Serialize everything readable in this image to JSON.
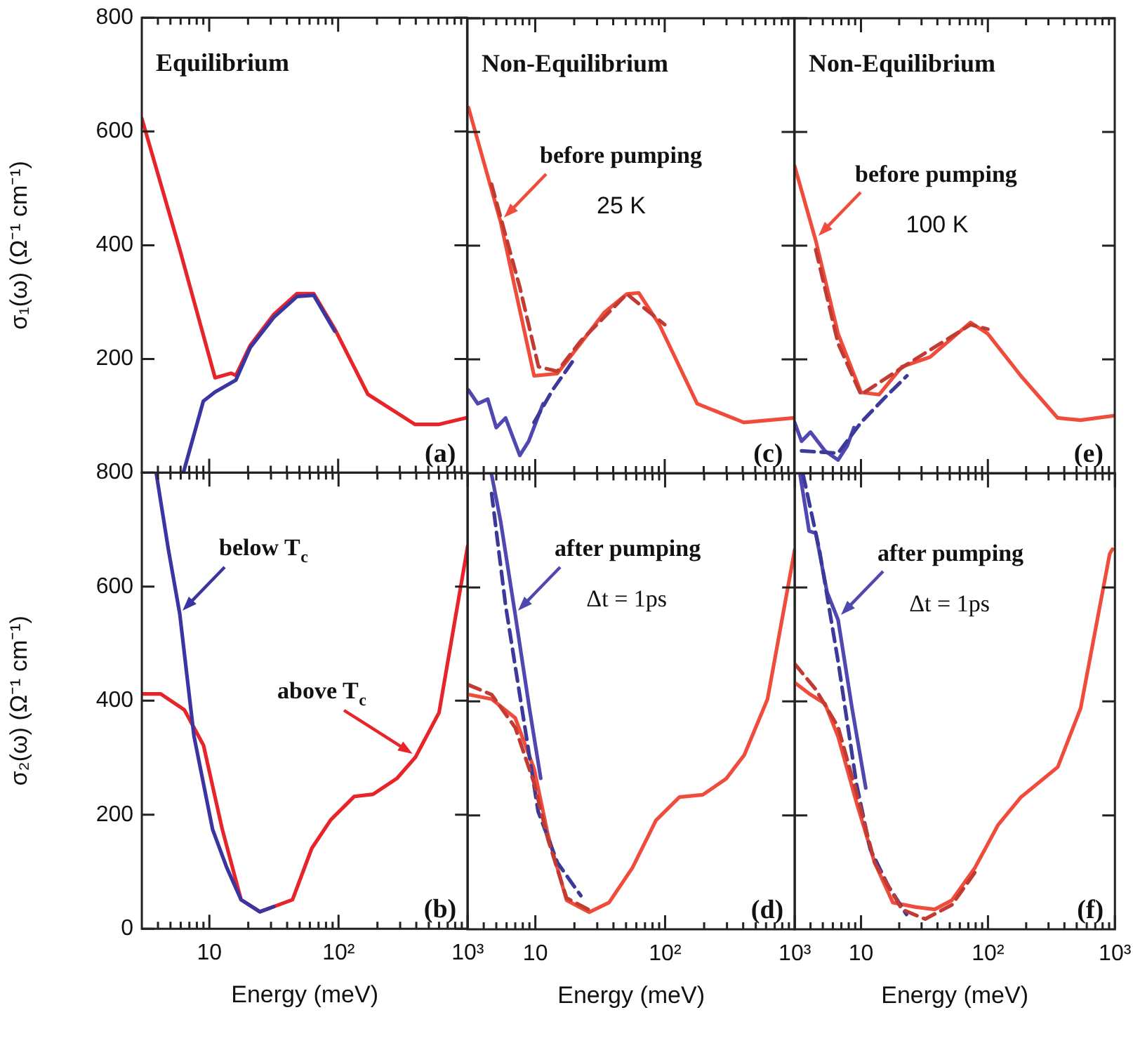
{
  "chart_data": [
    {
      "type": "line",
      "title": "Equilibrium",
      "ylabel": "σ₁(ω) (Ω⁻¹ cm⁻¹)",
      "tick_labels": "y",
      "xlim": [
        3,
        1000
      ],
      "ylim": [
        0,
        800
      ],
      "xticks": [
        {
          "value": 4,
          "label": null
        },
        {
          "value": 5,
          "label": null
        },
        {
          "value": 6,
          "label": null
        },
        {
          "value": 7,
          "label": null
        },
        {
          "value": 8,
          "label": null
        },
        {
          "value": 9,
          "label": null
        },
        {
          "value": 10,
          "label": null
        },
        {
          "value": 20,
          "label": null
        },
        {
          "value": 30,
          "label": null
        },
        {
          "value": 40,
          "label": null
        },
        {
          "value": 50,
          "label": null
        },
        {
          "value": 60,
          "label": null
        },
        {
          "value": 70,
          "label": null
        },
        {
          "value": 80,
          "label": null
        },
        {
          "value": 90,
          "label": null
        },
        {
          "value": 100,
          "label": null
        },
        {
          "value": 200,
          "label": null
        },
        {
          "value": 300,
          "label": null
        },
        {
          "value": 400,
          "label": null
        },
        {
          "value": 500,
          "label": null
        },
        {
          "value": 600,
          "label": null
        },
        {
          "value": 700,
          "label": null
        },
        {
          "value": 800,
          "label": null
        },
        {
          "value": 900,
          "label": null
        }
      ],
      "yticks": [
        200,
        400,
        600,
        800
      ],
      "log": "x",
      "annotations": [
        "(a)"
      ],
      "series": [
        {
          "color": "#3a35a0",
          "x": [
            6.3,
            9.0,
            11.1,
            16.1,
            20.8,
            31.6,
            48,
            64.6,
            94
          ],
          "values": [
            0,
            126,
            142,
            163,
            220,
            273,
            310,
            312,
            249
          ]
        },
        {
          "color": "#e8242b",
          "x": [
            3.0,
            5.9,
            11.1,
            14.8,
            16.1,
            20.8,
            31.6,
            48,
            64.6,
            94,
            170,
            394,
            600,
            1000
          ],
          "values": [
            623,
            393,
            167,
            175,
            171,
            224,
            278,
            315,
            315,
            253,
            138,
            85,
            85,
            97
          ]
        }
      ]
    },
    {
      "type": "line",
      "title": "Non-Equilibrium",
      "tick_labels": false,
      "xlim": [
        3,
        1000
      ],
      "ylim": [
        0,
        800
      ],
      "xticks": [
        {
          "value": 4,
          "label": null
        },
        {
          "value": 5,
          "label": null
        },
        {
          "value": 6,
          "label": null
        },
        {
          "value": 7,
          "label": null
        },
        {
          "value": 8,
          "label": null
        },
        {
          "value": 9,
          "label": null
        },
        {
          "value": 10,
          "label": null
        },
        {
          "value": 20,
          "label": null
        },
        {
          "value": 30,
          "label": null
        },
        {
          "value": 40,
          "label": null
        },
        {
          "value": 50,
          "label": null
        },
        {
          "value": 60,
          "label": null
        },
        {
          "value": 70,
          "label": null
        },
        {
          "value": 80,
          "label": null
        },
        {
          "value": 90,
          "label": null
        },
        {
          "value": 100,
          "label": null
        },
        {
          "value": 200,
          "label": null
        },
        {
          "value": 300,
          "label": null
        },
        {
          "value": 400,
          "label": null
        },
        {
          "value": 500,
          "label": null
        },
        {
          "value": 600,
          "label": null
        },
        {
          "value": 700,
          "label": null
        },
        {
          "value": 800,
          "label": null
        },
        {
          "value": 900,
          "label": null
        }
      ],
      "yticks": [
        {
          "value": 200,
          "label": null
        },
        {
          "value": 400,
          "label": null
        },
        {
          "value": 600,
          "label": null
        },
        {
          "value": 800,
          "label": null
        }
      ],
      "log": "x",
      "annotations": [
        "(c)",
        {
          "text": "before pumping",
          "x": 5.4,
          "y": 442
        },
        "25 K"
      ],
      "series": [
        {
          "color": "#c23b32",
          "line_style": "dashed",
          "x": [
            4.6,
            7.6,
            10.6,
            14.8,
            22.4,
            51,
            100
          ],
          "values": [
            508,
            327,
            187,
            179,
            232,
            315,
            261
          ]
        },
        {
          "color": "#3b3a9a",
          "line_style": "dashed",
          "x": [
            9.8,
            13.6,
            20.5
          ],
          "values": [
            89,
            146,
            204
          ]
        },
        {
          "color": "#5048b0",
          "x": [
            3.05,
            3.6,
            4.3,
            5.0,
            5.9,
            7.6,
            8.9,
            11.5
          ],
          "values": [
            146,
            122,
            130,
            80,
            97,
            31,
            56,
            122
          ]
        },
        {
          "color": "#ef4c3c",
          "x": [
            3.05,
            5.4,
            9.8,
            14.8,
            22.4,
            34,
            51,
            63,
            91,
            178,
            408,
            1000
          ],
          "values": [
            643,
            442,
            171,
            175,
            228,
            282,
            315,
            317,
            261,
            122,
            89,
            97
          ]
        }
      ]
    },
    {
      "type": "line",
      "title": "Non-Equilibrium",
      "tick_labels": false,
      "xlim": [
        3,
        1000
      ],
      "ylim": [
        0,
        800
      ],
      "xticks": [
        {
          "value": 4,
          "label": null
        },
        {
          "value": 5,
          "label": null
        },
        {
          "value": 6,
          "label": null
        },
        {
          "value": 7,
          "label": null
        },
        {
          "value": 8,
          "label": null
        },
        {
          "value": 9,
          "label": null
        },
        {
          "value": 10,
          "label": null
        },
        {
          "value": 20,
          "label": null
        },
        {
          "value": 30,
          "label": null
        },
        {
          "value": 40,
          "label": null
        },
        {
          "value": 50,
          "label": null
        },
        {
          "value": 60,
          "label": null
        },
        {
          "value": 70,
          "label": null
        },
        {
          "value": 80,
          "label": null
        },
        {
          "value": 90,
          "label": null
        },
        {
          "value": 100,
          "label": null
        },
        {
          "value": 200,
          "label": null
        },
        {
          "value": 300,
          "label": null
        },
        {
          "value": 400,
          "label": null
        },
        {
          "value": 500,
          "label": null
        },
        {
          "value": 600,
          "label": null
        },
        {
          "value": 700,
          "label": null
        },
        {
          "value": 800,
          "label": null
        },
        {
          "value": 900,
          "label": null
        }
      ],
      "yticks": [
        {
          "value": 200,
          "label": null
        },
        {
          "value": 400,
          "label": null
        },
        {
          "value": 600,
          "label": null
        },
        {
          "value": 800,
          "label": null
        }
      ],
      "log": "x",
      "annotations": [
        "(e)",
        {
          "text": "before pumping",
          "x": 4.4,
          "y": 409
        },
        "100 K"
      ],
      "series": [
        {
          "color": "#c23b32",
          "line_style": "dashed",
          "x": [
            4.4,
            6.6,
            10,
            23,
            73,
            100
          ],
          "values": [
            393,
            228,
            138,
            191,
            261,
            253
          ]
        },
        {
          "color": "#3b3a9a",
          "line_style": "dashed",
          "x": [
            3.4,
            6.6,
            10,
            15,
            23
          ],
          "values": [
            39,
            35,
            89,
            130,
            171
          ]
        },
        {
          "color": "#5048b0",
          "x": [
            3.0,
            3.4,
            4.0,
            5.2,
            6.6,
            7.8,
            8.8
          ],
          "values": [
            89,
            56,
            72,
            39,
            23,
            48,
            80
          ]
        },
        {
          "color": "#ef4c3c",
          "x": [
            3.0,
            4.4,
            6.6,
            10,
            13.9,
            21,
            35,
            73,
            100,
            182,
            355,
            537,
            1000
          ],
          "values": [
            540,
            409,
            245,
            142,
            138,
            187,
            204,
            265,
            245,
            171,
            97,
            93,
            101
          ]
        }
      ]
    },
    {
      "type": "line",
      "xlabel": "Energy (meV)",
      "ylabel": "σ₂(ω) (Ω⁻¹ cm⁻¹)",
      "xlim": [
        3,
        1000
      ],
      "ylim": [
        0,
        800
      ],
      "xticks": [
        {
          "value": 4,
          "label": null
        },
        {
          "value": 5,
          "label": null
        },
        {
          "value": 6,
          "label": null
        },
        {
          "value": 7,
          "label": null
        },
        {
          "value": 8,
          "label": null
        },
        {
          "value": 9,
          "label": null
        },
        {
          "value": 10,
          "label": "10"
        },
        {
          "value": 20,
          "label": null
        },
        {
          "value": 30,
          "label": null
        },
        {
          "value": 40,
          "label": null
        },
        {
          "value": 50,
          "label": null
        },
        {
          "value": 60,
          "label": null
        },
        {
          "value": 70,
          "label": null
        },
        {
          "value": 80,
          "label": null
        },
        {
          "value": 90,
          "label": null
        },
        {
          "value": 100,
          "label": "10²"
        },
        {
          "value": 200,
          "label": null
        },
        {
          "value": 300,
          "label": null
        },
        {
          "value": 400,
          "label": null
        },
        {
          "value": 500,
          "label": null
        },
        {
          "value": 600,
          "label": null
        },
        {
          "value": 700,
          "label": null
        },
        {
          "value": 800,
          "label": null
        },
        {
          "value": 900,
          "label": null
        },
        {
          "value": 1000,
          "label": "10³"
        }
      ],
      "yticks": [
        0,
        200,
        400,
        600,
        800
      ],
      "log": "x",
      "annotations": [
        "(b)",
        {
          "text": "below T$_{c}$",
          "x": 5.9,
          "y": 552
        },
        {
          "text": "above T$_{c}$",
          "x": 394,
          "y": 301
        }
      ],
      "series": [
        {
          "color": "#3a35a0",
          "x": [
            3.87,
            4.8,
            5.9,
            7.6,
            10.6,
            13.6,
            17.6,
            24.6,
            31.6
          ],
          "values": [
            800,
            667,
            552,
            338,
            174,
            108,
            51,
            30,
            39
          ]
        },
        {
          "color": "#e8242b",
          "x": [
            3.0,
            4.2,
            6.4,
            9.0,
            12.6,
            17.6,
            24.6,
            31.6,
            44,
            62,
            87,
            132,
            185,
            284,
            394,
            600,
            1000
          ],
          "values": [
            412,
            412,
            384,
            322,
            174,
            51,
            30,
            39,
            51,
            141,
            191,
            232,
            236,
            264,
            301,
            379,
            671
          ]
        }
      ]
    },
    {
      "type": "line",
      "xlabel": "Energy (meV)",
      "tick_labels": "x",
      "xlim": [
        3,
        1000
      ],
      "ylim": [
        0,
        800
      ],
      "xticks": [
        {
          "value": 4,
          "label": null
        },
        {
          "value": 5,
          "label": null
        },
        {
          "value": 6,
          "label": null
        },
        {
          "value": 7,
          "label": null
        },
        {
          "value": 8,
          "label": null
        },
        {
          "value": 9,
          "label": null
        },
        {
          "value": 10,
          "label": "10"
        },
        {
          "value": 20,
          "label": null
        },
        {
          "value": 30,
          "label": null
        },
        {
          "value": 40,
          "label": null
        },
        {
          "value": 50,
          "label": null
        },
        {
          "value": 60,
          "label": null
        },
        {
          "value": 70,
          "label": null
        },
        {
          "value": 80,
          "label": null
        },
        {
          "value": 90,
          "label": null
        },
        {
          "value": 100,
          "label": "10²"
        },
        {
          "value": 200,
          "label": null
        },
        {
          "value": 300,
          "label": null
        },
        {
          "value": 400,
          "label": null
        },
        {
          "value": 500,
          "label": null
        },
        {
          "value": 600,
          "label": null
        },
        {
          "value": 700,
          "label": null
        },
        {
          "value": 800,
          "label": null
        },
        {
          "value": 900,
          "label": null
        },
        {
          "value": 1000,
          "label": "10³"
        }
      ],
      "yticks": [
        {
          "value": 200,
          "label": null
        },
        {
          "value": 400,
          "label": null
        },
        {
          "value": 600,
          "label": null
        }
      ],
      "log": "x",
      "annotations": [
        "(d)",
        {
          "text": "after pumping",
          "x": 7.0,
          "y": 552
        },
        "Δt = 1ps"
      ],
      "series": [
        {
          "color": "#c23b32",
          "line_style": "dashed",
          "x": [
            3.05,
            4.6,
            7.0,
            9.8,
            12.5,
            17.4,
            26
          ],
          "values": [
            429,
            412,
            354,
            256,
            158,
            55,
            34
          ]
        },
        {
          "color": "#3b3a9a",
          "line_style": "dashed",
          "x": [
            4.6,
            5.9,
            8.3,
            10.5,
            14.8,
            22.4
          ],
          "values": [
            765,
            568,
            355,
            207,
            117,
            59
          ]
        },
        {
          "color": "#5048b0",
          "x": [
            4.6,
            5.4,
            7.0,
            9.0,
            11.0
          ],
          "values": [
            798,
            716,
            552,
            388,
            265
          ]
        },
        {
          "color": "#ef4c3c",
          "x": [
            3.05,
            4.6,
            7.0,
            9.8,
            12.5,
            17.4,
            26,
            37,
            56,
            85,
            129,
            195,
            295,
            408,
            616,
            1000
          ],
          "values": [
            412,
            404,
            371,
            281,
            166,
            51,
            30,
            47,
            108,
            191,
            232,
            236,
            264,
            306,
            404,
            667
          ]
        }
      ]
    },
    {
      "type": "line",
      "xlabel": "Energy (meV)",
      "tick_labels": "x",
      "xlim": [
        3,
        1000
      ],
      "ylim": [
        0,
        800
      ],
      "xticks": [
        {
          "value": 4,
          "label": null
        },
        {
          "value": 5,
          "label": null
        },
        {
          "value": 6,
          "label": null
        },
        {
          "value": 7,
          "label": null
        },
        {
          "value": 8,
          "label": null
        },
        {
          "value": 9,
          "label": null
        },
        {
          "value": 10,
          "label": "10"
        },
        {
          "value": 20,
          "label": null
        },
        {
          "value": 30,
          "label": null
        },
        {
          "value": 40,
          "label": null
        },
        {
          "value": 50,
          "label": null
        },
        {
          "value": 60,
          "label": null
        },
        {
          "value": 70,
          "label": null
        },
        {
          "value": 80,
          "label": null
        },
        {
          "value": 90,
          "label": null
        },
        {
          "value": 100,
          "label": "10²"
        },
        {
          "value": 200,
          "label": null
        },
        {
          "value": 300,
          "label": null
        },
        {
          "value": 400,
          "label": null
        },
        {
          "value": 500,
          "label": null
        },
        {
          "value": 600,
          "label": null
        },
        {
          "value": 700,
          "label": null
        },
        {
          "value": 800,
          "label": null
        },
        {
          "value": 900,
          "label": null
        },
        {
          "value": 1000,
          "label": "10³"
        }
      ],
      "yticks": [
        {
          "value": 200,
          "label": null
        },
        {
          "value": 400,
          "label": null
        },
        {
          "value": 600,
          "label": null
        }
      ],
      "log": "x",
      "annotations": [
        "(f)",
        {
          "text": "after pumping",
          "x": 6.6,
          "y": 543
        },
        "Δt = 1ps"
      ],
      "series": [
        {
          "color": "#c23b32",
          "line_style": "dashed",
          "x": [
            3.0,
            4.4,
            6.6,
            9.2,
            12.8,
            21,
            32,
            52,
            79
          ],
          "values": [
            466,
            421,
            355,
            240,
            117,
            35,
            18,
            43,
            100
          ]
        },
        {
          "color": "#3b3a9a",
          "line_style": "dashed",
          "x": [
            3.5,
            4.7,
            6.6,
            9.2,
            11.8,
            16.4,
            22.8
          ],
          "values": [
            798,
            666,
            470,
            256,
            141,
            76,
            26
          ]
        },
        {
          "color": "#5048b0",
          "x": [
            3.3,
            3.9,
            4.4,
            5.4,
            6.6,
            8.5,
            10.9
          ],
          "values": [
            800,
            699,
            695,
            592,
            543,
            388,
            248
          ]
        },
        {
          "color": "#ef4c3c",
          "x": [
            3.0,
            4.0,
            5.2,
            6.6,
            9.2,
            12.8,
            17.8,
            27,
            38,
            52,
            79,
            120,
            182,
            355,
            537,
            910,
            955
          ],
          "values": [
            433,
            412,
            396,
            338,
            223,
            117,
            47,
            39,
            35,
            51,
            108,
            183,
            232,
            285,
            388,
            659,
            667
          ]
        }
      ]
    }
  ]
}
